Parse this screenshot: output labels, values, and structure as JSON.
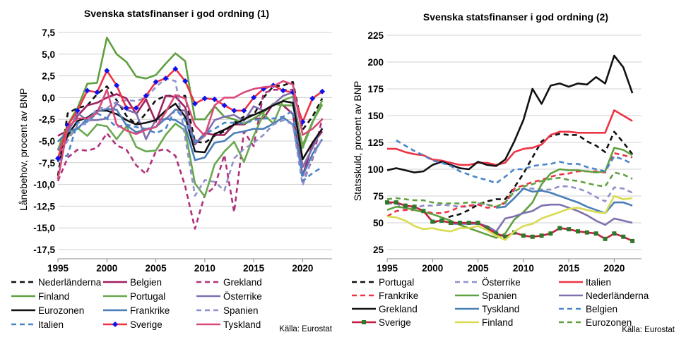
{
  "chart_data": [
    {
      "type": "line",
      "title": "Svenska statsfinanser i god ordning (1)",
      "xlabel": "",
      "ylabel": "Lånebehov, procent av BNP",
      "source": "Källa: Eurostat",
      "xlim": [
        1995,
        2023
      ],
      "ylim": [
        -17.5,
        7.5
      ],
      "xticks": [
        "1995",
        "2000",
        "2005",
        "2010",
        "2015",
        "2020"
      ],
      "xtick_values": [
        1995,
        2000,
        2005,
        2010,
        2015,
        2020
      ],
      "yticks": [
        "7,5",
        "5,0",
        "2,5",
        "0,0",
        "-2,5",
        "-5,0",
        "-7,5",
        "-10,0",
        "-12,5",
        "-15,0",
        "-17,5"
      ],
      "ytick_values": [
        7.5,
        5,
        2.5,
        0,
        -2.5,
        -5,
        -7.5,
        -10,
        -12.5,
        -15,
        -17.5
      ],
      "grid": "horizontal",
      "legend": "bottom",
      "x": [
        1995,
        1996,
        1997,
        1998,
        1999,
        2000,
        2001,
        2002,
        2003,
        2004,
        2005,
        2006,
        2007,
        2008,
        2009,
        2010,
        2011,
        2012,
        2013,
        2014,
        2015,
        2016,
        2017,
        2018,
        2019,
        2020,
        2021,
        2022
      ],
      "series": [
        {
          "name": "Nederländerna",
          "color": "#111111",
          "dash": "dashed",
          "marker": "none",
          "values": [
            -9.0,
            -1.8,
            -1.2,
            -0.9,
            0.4,
            1.3,
            -0.3,
            -2.1,
            -3.1,
            -1.8,
            -0.3,
            0.2,
            0.2,
            0.2,
            -5.1,
            -5.2,
            -4.4,
            -3.9,
            -2.9,
            -2.2,
            -2.0,
            0.0,
            1.3,
            1.4,
            1.8,
            -3.7,
            -2.2,
            -0.1
          ]
        },
        {
          "name": "Belgien",
          "color": "#a0205f",
          "dash": "solid",
          "marker": "none",
          "values": [
            -4.4,
            -3.8,
            -2.1,
            -0.9,
            -0.6,
            0.0,
            0.4,
            -0.1,
            -1.9,
            -0.2,
            -2.8,
            0.2,
            0.1,
            -1.1,
            -5.4,
            -4.1,
            -4.3,
            -4.3,
            -3.1,
            -3.1,
            -2.4,
            -2.4,
            -0.7,
            -0.9,
            -1.9,
            -9.0,
            -5.4,
            -3.9
          ]
        },
        {
          "name": "Grekland",
          "color": "#b0307a",
          "dash": "dashed",
          "marker": "none",
          "values": [
            -9.6,
            -6.9,
            -6.0,
            -6.1,
            -5.8,
            -4.1,
            -5.5,
            -6.0,
            -7.8,
            -8.8,
            -6.2,
            -5.9,
            -6.7,
            -10.2,
            -15.1,
            -11.2,
            -10.3,
            -6.6,
            -13.2,
            -3.9,
            -5.6,
            0.5,
            0.9,
            0.9,
            0.9,
            -9.7,
            -7.1,
            -2.4
          ]
        },
        {
          "name": "Finland",
          "color": "#60a040",
          "dash": "solid",
          "marker": "none",
          "values": [
            -6.0,
            -3.1,
            -1.2,
            1.6,
            1.7,
            6.9,
            5.0,
            4.1,
            2.4,
            2.2,
            2.6,
            3.9,
            5.1,
            4.2,
            -2.5,
            -2.5,
            -1.0,
            -2.2,
            -2.5,
            -3.0,
            -2.4,
            -1.7,
            -0.7,
            -0.9,
            -0.9,
            -5.5,
            -2.8,
            -0.8
          ]
        },
        {
          "name": "Portugal",
          "color": "#6aa84f",
          "dash": "solid",
          "marker": "none",
          "values": [
            -5.0,
            -4.5,
            -3.5,
            -4.4,
            -3.1,
            -3.3,
            -4.8,
            -3.3,
            -5.7,
            -6.2,
            -6.1,
            -4.3,
            -3.0,
            -3.8,
            -9.9,
            -11.4,
            -7.7,
            -6.2,
            -5.1,
            -7.4,
            -4.4,
            -1.9,
            -3.0,
            -0.3,
            0.1,
            -5.8,
            -2.9,
            -0.3
          ]
        },
        {
          "name": "Österrike",
          "color": "#8070b0",
          "dash": "solid",
          "marker": "none",
          "values": [
            -6.1,
            -4.0,
            -1.8,
            -2.6,
            -2.6,
            -2.4,
            -0.7,
            -1.4,
            -1.8,
            -4.8,
            -2.5,
            -2.5,
            -1.4,
            -1.5,
            -5.3,
            -4.4,
            -2.6,
            -2.2,
            -2.0,
            -2.7,
            -1.0,
            -1.5,
            -0.8,
            0.2,
            0.6,
            -8.0,
            -5.8,
            -3.5
          ]
        },
        {
          "name": "Eurozonen",
          "color": "#111111",
          "dash": "solid",
          "marker": "none",
          "values": [
            -7.4,
            -4.3,
            -2.7,
            -2.3,
            -1.5,
            -1.5,
            -1.9,
            -2.6,
            -3.1,
            -2.9,
            -2.6,
            -1.5,
            -0.7,
            -2.2,
            -6.2,
            -6.3,
            -4.2,
            -3.7,
            -3.1,
            -2.5,
            -2.0,
            -1.5,
            -0.9,
            -0.4,
            -0.6,
            -7.1,
            -5.2,
            -3.6
          ]
        },
        {
          "name": "Frankrike",
          "color": "#4a7eb8",
          "dash": "solid",
          "marker": "none",
          "values": [
            -5.1,
            -3.9,
            -3.6,
            -2.4,
            -1.6,
            -1.3,
            -1.4,
            -3.2,
            -4.0,
            -3.6,
            -3.4,
            -2.4,
            -2.6,
            -3.3,
            -7.2,
            -6.9,
            -5.2,
            -5.0,
            -4.1,
            -3.9,
            -3.6,
            -3.6,
            -3.0,
            -2.3,
            -3.1,
            -9.0,
            -6.5,
            -4.8
          ]
        },
        {
          "name": "Spanien",
          "color": "#9090cc",
          "dash": "dashed",
          "marker": "none",
          "values": [
            -7.0,
            -4.9,
            -3.2,
            -3.0,
            -1.2,
            -1.2,
            -0.5,
            -0.3,
            -0.4,
            0.0,
            1.2,
            2.2,
            1.9,
            -4.6,
            -11.3,
            -9.5,
            -9.7,
            -10.7,
            -7.0,
            -5.9,
            -5.2,
            -4.3,
            -3.1,
            -2.6,
            -3.1,
            -10.1,
            -6.9,
            -4.7
          ]
        },
        {
          "name": "Italien",
          "color": "#4a86c8",
          "dash": "dashed",
          "marker": "none",
          "values": [
            -7.3,
            -6.6,
            -2.9,
            -2.8,
            -1.8,
            -2.4,
            -3.4,
            -3.1,
            -3.4,
            -3.6,
            -4.1,
            -3.6,
            -1.3,
            -2.6,
            -5.1,
            -4.2,
            -3.6,
            -2.9,
            -2.9,
            -3.0,
            -2.6,
            -2.4,
            -2.4,
            -2.2,
            -1.5,
            -9.6,
            -8.7,
            -8.0
          ]
        },
        {
          "name": "Sverige",
          "color": "#ee3344",
          "dash": "solid",
          "marker": "diamond",
          "marker_color": "#1111ee",
          "values": [
            -7.0,
            -3.2,
            -1.5,
            0.8,
            0.6,
            3.1,
            1.4,
            -1.2,
            -1.2,
            0.2,
            1.8,
            2.2,
            3.3,
            1.9,
            -0.7,
            -0.1,
            -0.2,
            -0.9,
            -1.5,
            -1.5,
            0.0,
            1.0,
            1.4,
            0.8,
            0.6,
            -2.8,
            -0.1,
            0.7
          ]
        },
        {
          "name": "Tyskland",
          "color": "#d84a7a",
          "dash": "solid",
          "marker": "none",
          "values": [
            -9.4,
            -3.4,
            -2.4,
            -2.4,
            -1.8,
            0.9,
            -3.1,
            -3.8,
            -4.2,
            -3.7,
            -3.4,
            -1.7,
            0.3,
            -0.1,
            -3.2,
            -4.4,
            -0.9,
            0.0,
            0.0,
            0.6,
            1.0,
            1.2,
            1.3,
            1.9,
            1.5,
            -4.3,
            -3.6,
            -2.5
          ]
        }
      ]
    },
    {
      "type": "line",
      "title": "Svenska statsfinanser i god ordning (2)",
      "xlabel": "",
      "ylabel": "Statsskuld, procent av BNP",
      "source": "Källa: Eurostat",
      "xlim": [
        1995,
        2023
      ],
      "ylim": [
        25,
        225
      ],
      "xticks": [
        "1995",
        "2000",
        "2005",
        "2010",
        "2015",
        "2020"
      ],
      "xtick_values": [
        1995,
        2000,
        2005,
        2010,
        2015,
        2020
      ],
      "yticks": [
        "225",
        "200",
        "175",
        "150",
        "125",
        "100",
        "75",
        "50",
        "25"
      ],
      "ytick_values": [
        225,
        200,
        175,
        150,
        125,
        100,
        75,
        50,
        25
      ],
      "grid": "horizontal",
      "legend": "bottom",
      "x": [
        1995,
        1996,
        1997,
        1998,
        1999,
        2000,
        2001,
        2002,
        2003,
        2004,
        2005,
        2006,
        2007,
        2008,
        2009,
        2010,
        2011,
        2012,
        2013,
        2014,
        2015,
        2016,
        2017,
        2018,
        2019,
        2020,
        2021,
        2022
      ],
      "series": [
        {
          "name": "Portugal",
          "color": "#111111",
          "dash": "dashed",
          "marker": "none",
          "values": [
            null,
            null,
            null,
            null,
            null,
            50,
            53,
            56,
            58,
            62,
            67,
            70,
            72,
            72,
            83,
            96,
            111,
            126,
            131,
            133,
            132,
            132,
            126,
            122,
            116,
            135,
            125,
            114
          ]
        },
        {
          "name": "Österrike",
          "color": "#9090cc",
          "dash": "dashed",
          "marker": "none",
          "values": [
            68,
            68,
            63,
            64,
            66,
            66,
            67,
            66,
            65,
            65,
            68,
            67,
            65,
            68,
            80,
            82,
            82,
            81,
            81,
            84,
            84,
            82,
            79,
            74,
            70,
            83,
            82,
            78
          ]
        },
        {
          "name": "Italien",
          "color": "#ee3344",
          "dash": "solid",
          "marker": "none",
          "values": [
            119,
            119,
            116,
            114,
            113,
            109,
            108,
            106,
            104,
            104,
            106,
            106,
            104,
            106,
            116,
            119,
            120,
            123,
            132,
            135,
            135,
            134,
            134,
            134,
            134,
            155,
            150,
            145
          ]
        },
        {
          "name": "Frankrike",
          "color": "#ee3344",
          "dash": "dashed",
          "marker": "none",
          "values": [
            56,
            61,
            62,
            62,
            61,
            59,
            59,
            61,
            65,
            66,
            67,
            64,
            65,
            69,
            82,
            85,
            88,
            90,
            93,
            95,
            96,
            98,
            98,
            98,
            97,
            115,
            113,
            111
          ]
        },
        {
          "name": "Spanien",
          "color": "#60a040",
          "dash": "solid",
          "marker": "none",
          "values": [
            62,
            65,
            64,
            62,
            60,
            58,
            55,
            52,
            48,
            45,
            42,
            39,
            36,
            40,
            53,
            60,
            69,
            86,
            96,
            100,
            99,
            99,
            98,
            97,
            98,
            120,
            118,
            113
          ]
        },
        {
          "name": "Nederländerna",
          "color": "#8070b0",
          "dash": "solid",
          "marker": "none",
          "values": [
            null,
            null,
            null,
            null,
            null,
            null,
            null,
            49,
            49,
            49,
            49,
            47,
            42,
            54,
            56,
            59,
            61,
            66,
            67,
            67,
            64,
            61,
            57,
            52,
            48,
            54,
            52,
            50
          ]
        },
        {
          "name": "Grekland",
          "color": "#111111",
          "dash": "solid",
          "marker": "none",
          "values": [
            99,
            101,
            99,
            97,
            98,
            104,
            107,
            104,
            101,
            100,
            107,
            104,
            103,
            109,
            126,
            146,
            175,
            161,
            178,
            180,
            177,
            180,
            179,
            186,
            180,
            206,
            195,
            171
          ]
        },
        {
          "name": "Tyskland",
          "color": "#4a7eb8",
          "dash": "solid",
          "marker": "none",
          "values": [
            null,
            null,
            null,
            null,
            null,
            null,
            null,
            null,
            null,
            null,
            null,
            null,
            64,
            65,
            73,
            82,
            79,
            80,
            78,
            75,
            72,
            69,
            65,
            62,
            59,
            69,
            69,
            66
          ]
        },
        {
          "name": "Belgien",
          "color": "#4a86c8",
          "dash": "dashed",
          "marker": "none",
          "values": [
            null,
            127,
            122,
            117,
            113,
            108,
            106,
            103,
            98,
            95,
            92,
            90,
            87,
            93,
            100,
            100,
            103,
            104,
            105,
            107,
            105,
            105,
            102,
            100,
            98,
            112,
            109,
            105
          ]
        },
        {
          "name": "Sverige",
          "color": "#c02040",
          "dash": "solid",
          "marker": "square",
          "marker_color": "#2a7a2a",
          "values": [
            69,
            69,
            66,
            65,
            61,
            51,
            52,
            50,
            50,
            50,
            50,
            45,
            40,
            37,
            41,
            38,
            37,
            38,
            40,
            45,
            44,
            42,
            41,
            40,
            35,
            40,
            37,
            33
          ]
        },
        {
          "name": "Finland",
          "color": "#d8dc50",
          "dash": "solid",
          "marker": "none",
          "values": [
            56,
            55,
            52,
            47,
            44,
            45,
            43,
            42,
            45,
            45,
            47,
            43,
            38,
            34,
            42,
            47,
            49,
            54,
            57,
            60,
            63,
            64,
            62,
            60,
            59,
            75,
            72,
            73
          ]
        },
        {
          "name": "Eurozonen",
          "color": "#60a040",
          "dash": "dashed",
          "marker": "none",
          "values": [
            72,
            73,
            72,
            71,
            71,
            69,
            68,
            68,
            68,
            69,
            69,
            67,
            65,
            69,
            79,
            84,
            86,
            89,
            91,
            92,
            90,
            89,
            87,
            85,
            84,
            97,
            95,
            91
          ]
        }
      ]
    }
  ]
}
